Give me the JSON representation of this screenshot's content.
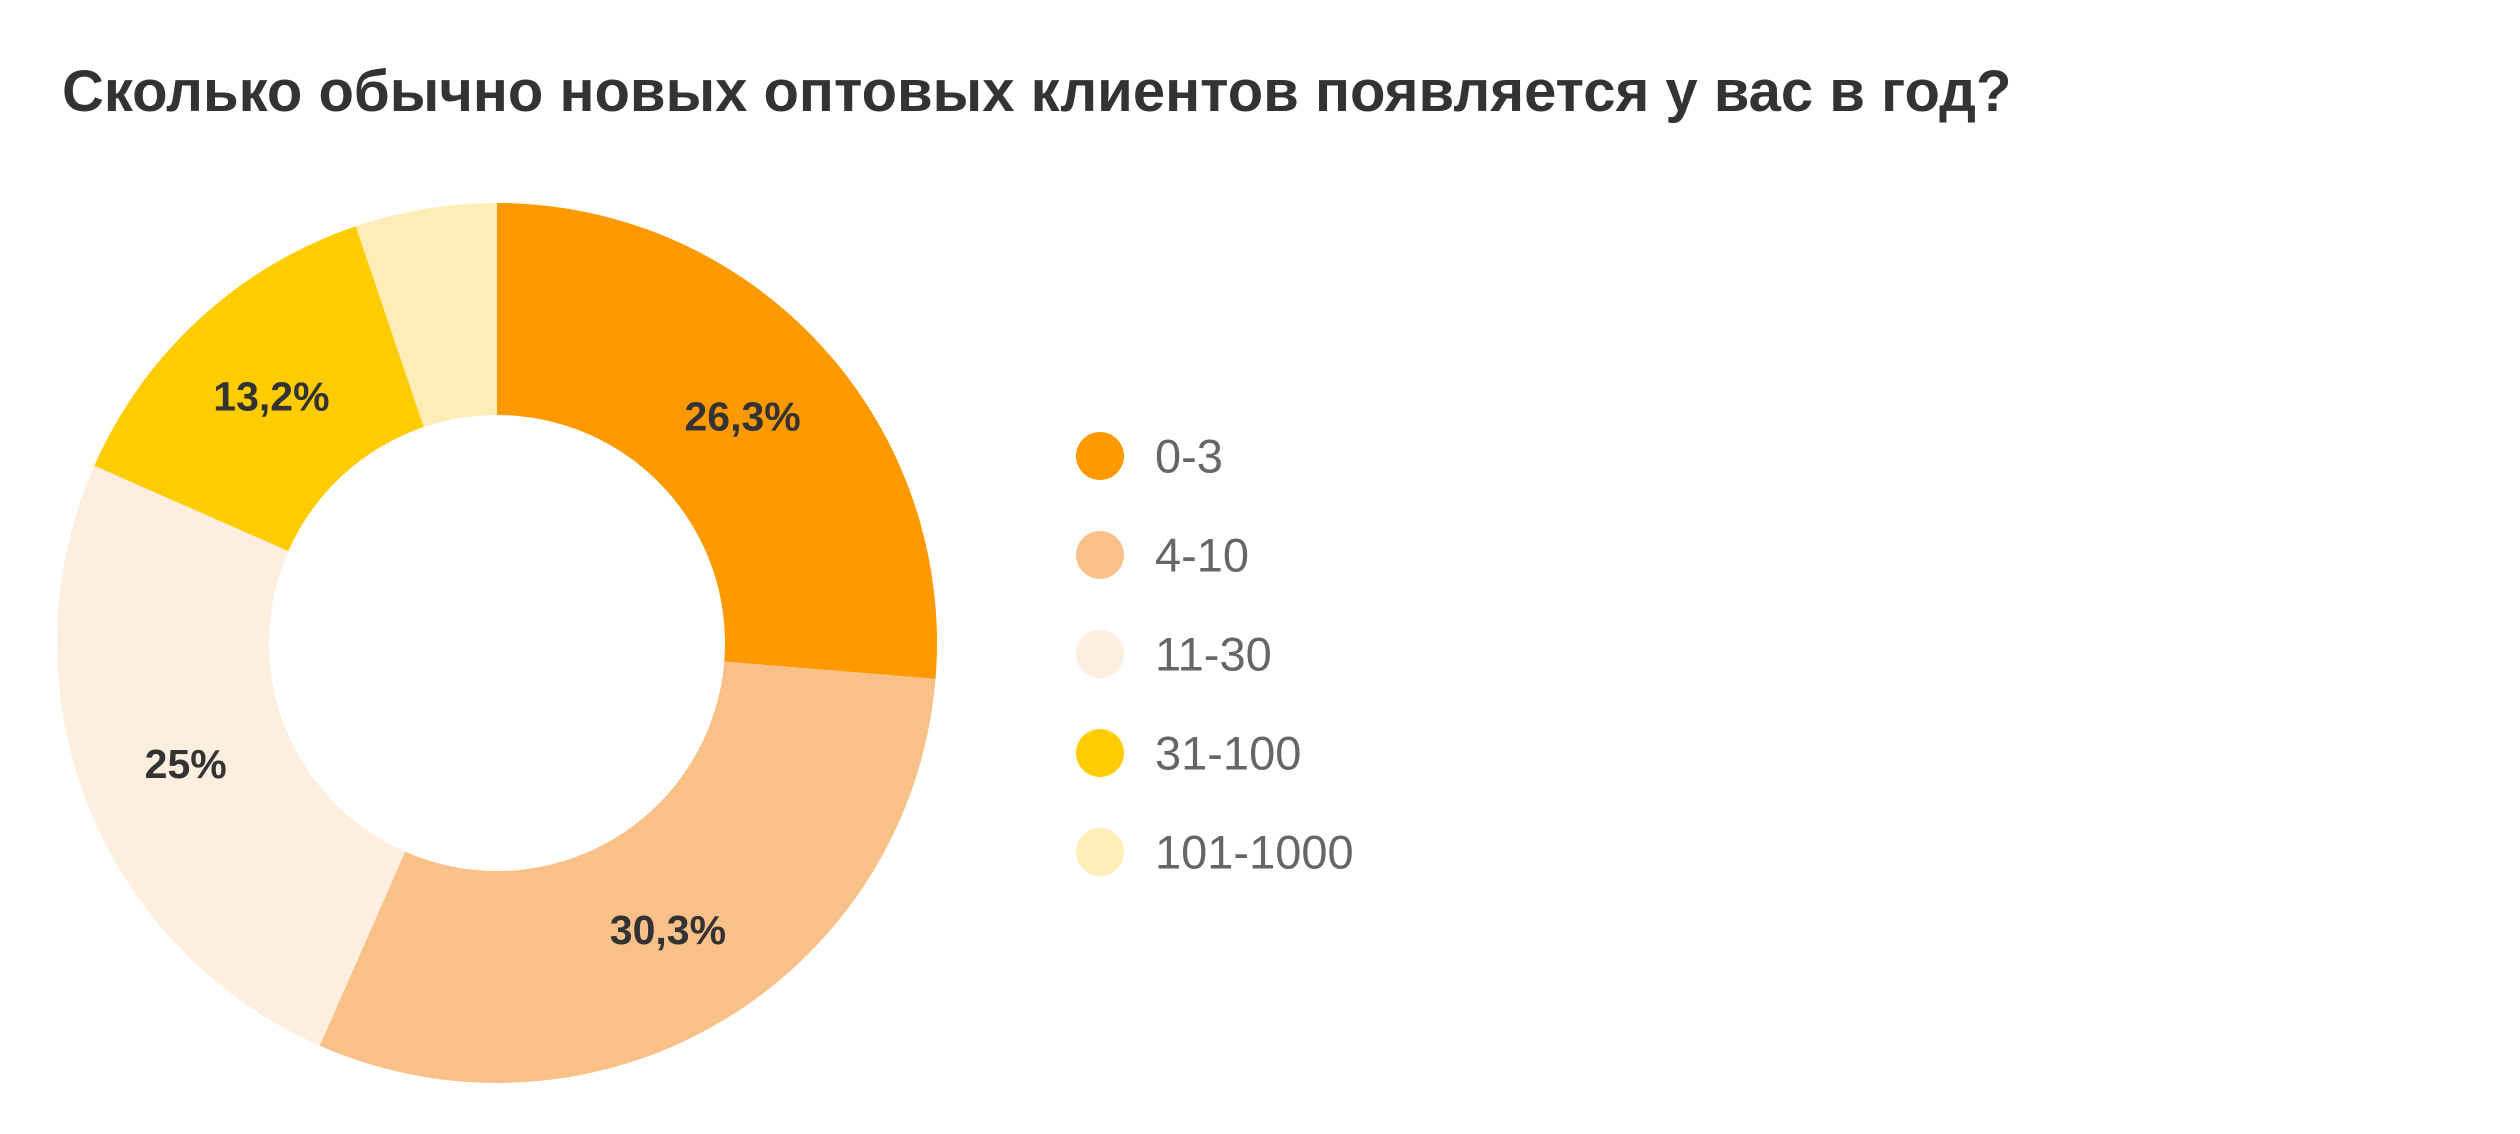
{
  "chart_data": {
    "type": "pie",
    "donut": true,
    "title": "Сколько обычно новых оптовых клиентов появляется у вас в год?",
    "legend_position": "right",
    "slices": [
      {
        "label": "0-3",
        "value": 26.3,
        "display": "26,3%",
        "color": "#ff9900"
      },
      {
        "label": "4-10",
        "value": 30.3,
        "display": "30,3%",
        "color": "#f9c187"
      },
      {
        "label": "11-30",
        "value": 25.0,
        "display": "25%",
        "color": "#fdeee0"
      },
      {
        "label": "31-100",
        "value": 13.2,
        "display": "13,2%",
        "color": "#ffcc00"
      },
      {
        "label": "101-1000",
        "value": 5.2,
        "display": "",
        "color": "#ffedb8"
      }
    ]
  }
}
